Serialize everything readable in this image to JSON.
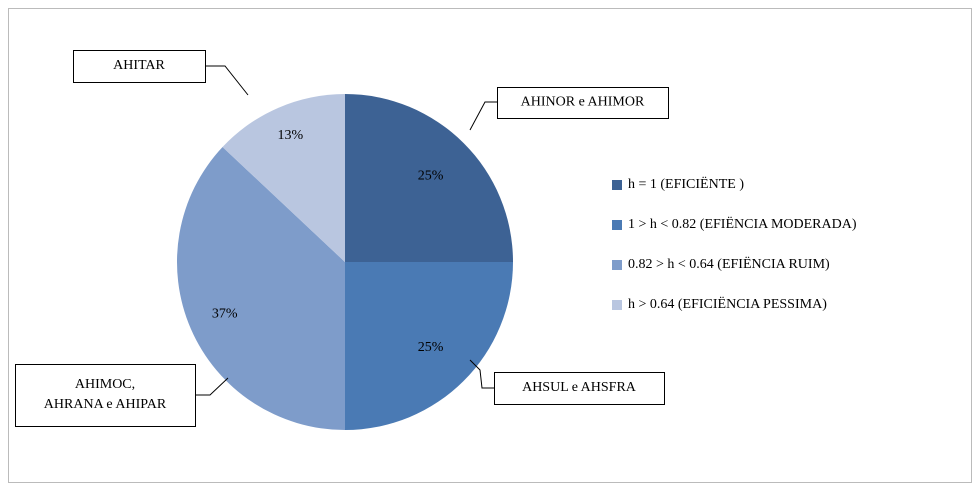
{
  "chart_data": {
    "type": "pie",
    "categories": [
      "h = 1 (EFICIËNTE )",
      "1 > h < 0.82 (EFIËNCIA MODERADA)",
      "0.82 >  h < 0.64 (EFIËNCIA RUIM)",
      "h > 0.64 (EFICIËNCIA PESSIMA)"
    ],
    "values": [
      25,
      25,
      37,
      13
    ],
    "value_labels": [
      "25%",
      "25%",
      "37%",
      "13%"
    ],
    "colors": [
      "#3d6294",
      "#4a7ab4",
      "#7e9cca",
      "#b9c6e0"
    ],
    "legend": "right",
    "annotations": [
      {
        "lines": [
          "AHINOR e AHIMOR"
        ]
      },
      {
        "lines": [
          "AHSUL e AHSFRA"
        ]
      },
      {
        "lines": [
          "AHIMOC,",
          "AHRANA e AHIPAR"
        ]
      },
      {
        "lines": [
          "AHITAR"
        ]
      }
    ]
  }
}
